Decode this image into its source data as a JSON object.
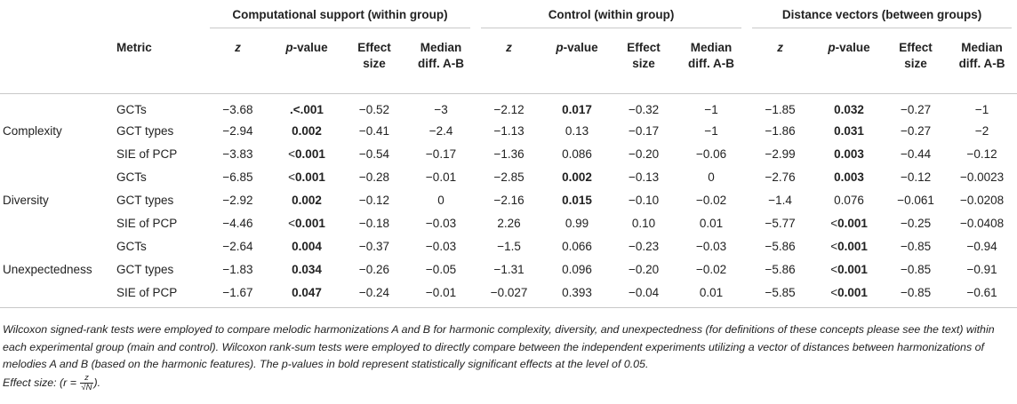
{
  "header": {
    "metric_label": "Metric",
    "groups": [
      "Computational support (within group)",
      "Control (within group)",
      "Distance vectors (between groups)"
    ],
    "z_label": "z",
    "p_italic": "p",
    "p_suffix": "-value",
    "effect_line1": "Effect",
    "effect_line2": "size",
    "median_line1": "Median",
    "median_line2": "diff. A-B"
  },
  "rows": [
    {
      "category": "",
      "metric": "GCTs",
      "cells": [
        [
          "−3.68",
          ""
        ],
        [
          "",
          ".<.001"
        ],
        [
          "−0.52",
          ""
        ],
        [
          "−3",
          ""
        ],
        [
          "−2.12",
          ""
        ],
        [
          "",
          "0.017"
        ],
        [
          "−0.32",
          ""
        ],
        [
          "−1",
          ""
        ],
        [
          "−1.85",
          ""
        ],
        [
          "",
          "0.032"
        ],
        [
          "−0.27",
          ""
        ],
        [
          "−1",
          ""
        ]
      ]
    },
    {
      "category": "Complexity",
      "metric": "GCT types",
      "cells": [
        [
          "−2.94",
          ""
        ],
        [
          "",
          "0.002"
        ],
        [
          "−0.41",
          ""
        ],
        [
          "−2.4",
          ""
        ],
        [
          "−1.13",
          ""
        ],
        [
          "0.13",
          ""
        ],
        [
          "−0.17",
          ""
        ],
        [
          "−1",
          ""
        ],
        [
          "−1.86",
          ""
        ],
        [
          "",
          "0.031"
        ],
        [
          "−0.27",
          ""
        ],
        [
          "−2",
          ""
        ]
      ]
    },
    {
      "category": "",
      "metric": "SIE of PCP",
      "cells": [
        [
          "−3.83",
          ""
        ],
        [
          "<",
          "0.001"
        ],
        [
          "−0.54",
          ""
        ],
        [
          "−0.17",
          ""
        ],
        [
          "−1.36",
          ""
        ],
        [
          "0.086",
          ""
        ],
        [
          "−0.20",
          ""
        ],
        [
          "−0.06",
          ""
        ],
        [
          "−2.99",
          ""
        ],
        [
          "",
          "0.003"
        ],
        [
          "−0.44",
          ""
        ],
        [
          "−0.12",
          ""
        ]
      ]
    },
    {
      "category": "",
      "metric": "GCTs",
      "cells": [
        [
          "−6.85",
          ""
        ],
        [
          "<",
          "0.001"
        ],
        [
          "−0.28",
          ""
        ],
        [
          "−0.01",
          ""
        ],
        [
          "−2.85",
          ""
        ],
        [
          "",
          "0.002"
        ],
        [
          "−0.13",
          ""
        ],
        [
          "0",
          ""
        ],
        [
          "−2.76",
          ""
        ],
        [
          "",
          "0.003"
        ],
        [
          "−0.12",
          ""
        ],
        [
          "−0.0023",
          ""
        ]
      ]
    },
    {
      "category": "Diversity",
      "metric": "GCT types",
      "cells": [
        [
          "−2.92",
          ""
        ],
        [
          "",
          "0.002"
        ],
        [
          "−0.12",
          ""
        ],
        [
          "0",
          ""
        ],
        [
          "−2.16",
          ""
        ],
        [
          "",
          "0.015"
        ],
        [
          "−0.10",
          ""
        ],
        [
          "−0.02",
          ""
        ],
        [
          "−1.4",
          ""
        ],
        [
          "0.076",
          ""
        ],
        [
          "−0.061",
          ""
        ],
        [
          "−0.0208",
          ""
        ]
      ]
    },
    {
      "category": "",
      "metric": "SIE of PCP",
      "cells": [
        [
          "−4.46",
          ""
        ],
        [
          "<",
          "0.001"
        ],
        [
          "−0.18",
          ""
        ],
        [
          "−0.03",
          ""
        ],
        [
          "2.26",
          ""
        ],
        [
          "0.99",
          ""
        ],
        [
          "0.10",
          ""
        ],
        [
          "0.01",
          ""
        ],
        [
          "−5.77",
          ""
        ],
        [
          "<",
          "0.001"
        ],
        [
          "−0.25",
          ""
        ],
        [
          "−0.0408",
          ""
        ]
      ]
    },
    {
      "category": "",
      "metric": "GCTs",
      "cells": [
        [
          "−2.64",
          ""
        ],
        [
          "",
          "0.004"
        ],
        [
          "−0.37",
          ""
        ],
        [
          "−0.03",
          ""
        ],
        [
          "−1.5",
          ""
        ],
        [
          "0.066",
          ""
        ],
        [
          "−0.23",
          ""
        ],
        [
          "−0.03",
          ""
        ],
        [
          "−5.86",
          ""
        ],
        [
          "<",
          "0.001"
        ],
        [
          "−0.85",
          ""
        ],
        [
          "−0.94",
          ""
        ]
      ]
    },
    {
      "category": "Unexpectedness",
      "metric": "GCT types",
      "cells": [
        [
          "−1.83",
          ""
        ],
        [
          "",
          "0.034"
        ],
        [
          "−0.26",
          ""
        ],
        [
          "−0.05",
          ""
        ],
        [
          "−1.31",
          ""
        ],
        [
          "0.096",
          ""
        ],
        [
          "−0.20",
          ""
        ],
        [
          "−0.02",
          ""
        ],
        [
          "−5.86",
          ""
        ],
        [
          "<",
          "0.001"
        ],
        [
          "−0.85",
          ""
        ],
        [
          "−0.91",
          ""
        ]
      ]
    },
    {
      "category": "",
      "metric": "SIE of PCP",
      "cells": [
        [
          "−1.67",
          ""
        ],
        [
          "",
          "0.047"
        ],
        [
          "−0.24",
          ""
        ],
        [
          "−0.01",
          ""
        ],
        [
          "−0.027",
          ""
        ],
        [
          "0.393",
          ""
        ],
        [
          "−0.04",
          ""
        ],
        [
          "0.01",
          ""
        ],
        [
          "−5.85",
          ""
        ],
        [
          "<",
          "0.001"
        ],
        [
          "−0.85",
          ""
        ],
        [
          "−0.61",
          ""
        ]
      ]
    }
  ],
  "notes": {
    "paragraph": "Wilcoxon signed-rank tests were employed to compare melodic harmonizations A and B for harmonic complexity, diversity, and unexpectedness (for definitions of these concepts please see the text) within each experimental group (main and control). Wilcoxon rank-sum tests were employed to directly compare between the independent experiments utilizing a vector of distances between harmonizations of melodies A and B (based on the harmonic features). The p-values in bold represent statistically significant effects at the level of 0.05.",
    "effect_prefix": "Effect size: (r = ",
    "frac_num": "z",
    "frac_den": "√N",
    "effect_suffix": ")."
  }
}
